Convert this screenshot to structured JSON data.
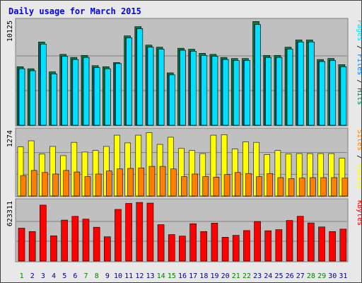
{
  "title": "Daily usage for March 2015",
  "colors": {
    "page_bg": "#e8e8e8",
    "panel_bg": "#c0c0c0",
    "grid": "#808080",
    "border": "#808080",
    "title": "#0000ff",
    "weekday": "#000080",
    "weekend": "#008000",
    "pages": "#00e0ff",
    "files": "#0080ff",
    "hits": "#008040",
    "visits": "#ffff00",
    "sites": "#ff8000",
    "kbytes": "#ff0000",
    "separator": "#000000"
  },
  "chart_data": {
    "type": "bar",
    "title": "Daily usage for March 2015",
    "days": [
      "1",
      "2",
      "3",
      "4",
      "5",
      "6",
      "7",
      "8",
      "9",
      "10",
      "11",
      "12",
      "13",
      "14",
      "15",
      "16",
      "17",
      "18",
      "19",
      "20",
      "21",
      "22",
      "23",
      "24",
      "25",
      "26",
      "27",
      "28",
      "29",
      "30",
      "31"
    ],
    "weekend_days": [
      1,
      7,
      8,
      14,
      15,
      21,
      22,
      28,
      29
    ],
    "panels": [
      {
        "id": "hits-panel",
        "ymax_label": "10125",
        "ymax": 10125,
        "legend": [
          {
            "text": "Pages",
            "color": "#00e0ff"
          },
          {
            "text": " / ",
            "color": "#000000"
          },
          {
            "text": "Files",
            "color": "#0080ff"
          },
          {
            "text": " / ",
            "color": "#000000"
          },
          {
            "text": "Hits",
            "color": "#008040"
          }
        ],
        "series": [
          {
            "name": "Hits",
            "color": "#008040",
            "values": [
              5700,
              5500,
              8100,
              5200,
              6900,
              6600,
              6800,
              5800,
              5700,
              6100,
              8700,
              9600,
              7800,
              7600,
              5100,
              7500,
              7400,
              7000,
              6900,
              6600,
              6500,
              6500,
              10100,
              6800,
              6800,
              7600,
              8300,
              8300,
              6400,
              6500,
              5900
            ]
          },
          {
            "name": "Files",
            "color": "#0080ff",
            "values": [
              5500,
              5300,
              7900,
              5000,
              6700,
              6400,
              6600,
              5600,
              5500,
              6000,
              8500,
              9400,
              7600,
              7400,
              4900,
              7300,
              7200,
              6800,
              6700,
              6400,
              6300,
              6300,
              9800,
              6600,
              6600,
              7400,
              8100,
              8100,
              6200,
              6300,
              5700
            ]
          },
          {
            "name": "Pages",
            "color": "#00e0ff",
            "values": [
              5500,
              5300,
              7900,
              5000,
              6700,
              6400,
              6600,
              5600,
              5500,
              6000,
              8500,
              9400,
              7600,
              7400,
              4900,
              7300,
              7200,
              6800,
              6700,
              6400,
              6300,
              6300,
              9800,
              6600,
              6600,
              7400,
              8100,
              8100,
              6200,
              6300,
              5700
            ]
          }
        ]
      },
      {
        "id": "visits-panel",
        "ymax_label": "1274",
        "ymax": 1274,
        "legend": [
          {
            "text": "Sites",
            "color": "#ff8000"
          },
          {
            "text": " / ",
            "color": "#000000"
          },
          {
            "text": "Visits",
            "color": "#ffff00"
          }
        ],
        "series": [
          {
            "name": "Visits",
            "color": "#ffff00",
            "values": [
              960,
              1080,
              820,
              970,
              790,
              1050,
              860,
              890,
              970,
              1190,
              1040,
              1190,
              1240,
              1010,
              1150,
              930,
              890,
              830,
              1190,
              1200,
              920,
              1060,
              1050,
              810,
              890,
              820,
              830,
              830,
              830,
              830,
              740
            ]
          },
          {
            "name": "Sites",
            "color": "#ff8000",
            "values": [
              400,
              500,
              460,
              430,
              500,
              470,
              380,
              430,
              490,
              530,
              540,
              550,
              580,
              580,
              530,
              380,
              430,
              380,
              370,
              420,
              460,
              440,
              380,
              440,
              360,
              340,
              350,
              360,
              360,
              360,
              350
            ]
          }
        ]
      },
      {
        "id": "kbytes-panel",
        "ymax_label": "623311",
        "ymax": 623311,
        "legend": [
          {
            "text": "KBytes",
            "color": "#ff0000"
          }
        ],
        "series": [
          {
            "name": "KBytes",
            "color": "#ff0000",
            "values": [
              345000,
              310000,
              587000,
              265000,
              430000,
              469000,
              440000,
              355000,
              255000,
              542000,
              605000,
              615000,
              608000,
              382000,
              278000,
              262000,
              392000,
              310000,
              398000,
              250000,
              270000,
              320000,
              415000,
              318000,
              330000,
              426000,
              470000,
              400000,
              358000,
              310000,
              335000
            ]
          }
        ]
      }
    ]
  }
}
